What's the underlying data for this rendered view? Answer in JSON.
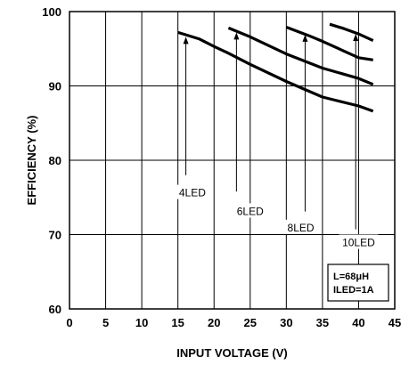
{
  "chart_data": {
    "type": "line",
    "xlabel": "INPUT VOLTAGE (V)",
    "ylabel": "EFFICIENCY (%)",
    "xlim": [
      0,
      45
    ],
    "ylim": [
      60,
      100
    ],
    "xticks": [
      "0",
      "5",
      "10",
      "15",
      "20",
      "25",
      "30",
      "35",
      "40",
      "45"
    ],
    "yticks": [
      "60",
      "70",
      "80",
      "90",
      "100"
    ],
    "grid": true,
    "series": [
      {
        "name": "4LED",
        "x": [
          15,
          18,
          20,
          22,
          25,
          30,
          35,
          40,
          42
        ],
        "y": [
          97.2,
          96.3,
          95.3,
          94.4,
          92.9,
          90.6,
          88.5,
          87.3,
          86.6
        ]
      },
      {
        "name": "6LED",
        "x": [
          22,
          25,
          30,
          35,
          40,
          42
        ],
        "y": [
          97.8,
          96.6,
          94.3,
          92.4,
          91.0,
          90.2
        ]
      },
      {
        "name": "8LED",
        "x": [
          30,
          33,
          35,
          40,
          42
        ],
        "y": [
          97.9,
          96.8,
          96.0,
          93.8,
          93.5
        ]
      },
      {
        "name": "10LED",
        "x": [
          36,
          38,
          40,
          42
        ],
        "y": [
          98.3,
          97.7,
          97.0,
          96.1
        ]
      }
    ],
    "annotations": [
      {
        "label": "4LED",
        "text_x": 17,
        "text_y": 75.5,
        "arrow_x": 16.1,
        "arrow_from_y": 78,
        "arrow_to_y": 96.6
      },
      {
        "label": "6LED",
        "text_x": 25,
        "text_y": 73,
        "arrow_x": 23.1,
        "arrow_to_y": 97.2,
        "arrow_from_y": 75.8
      },
      {
        "label": "8LED",
        "text_x": 32,
        "text_y": 70.8,
        "arrow_x": 32.6,
        "arrow_from_y": 73.1,
        "arrow_to_y": 96.9
      },
      {
        "label": "10LED",
        "text_x": 40,
        "text_y": 68.8,
        "arrow_x": 39.6,
        "arrow_from_y": 70.7,
        "arrow_to_y": 97.0
      }
    ],
    "legend_box": [
      "L=68μH",
      "ILED=1A"
    ]
  }
}
